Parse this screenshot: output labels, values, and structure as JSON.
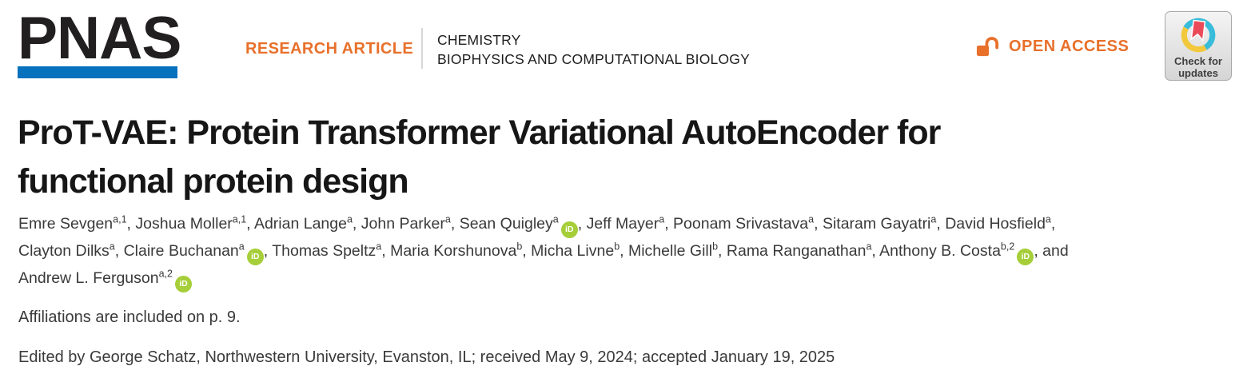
{
  "header": {
    "logo_text": "PNAS",
    "article_type": "RESEARCH ARTICLE",
    "categories": [
      "CHEMISTRY",
      "BIOPHYSICS AND COMPUTATIONAL BIOLOGY"
    ],
    "open_access_label": "OPEN ACCESS",
    "check_updates": {
      "line1": "Check for",
      "line2": "updates"
    }
  },
  "article": {
    "title_line1": "ProT-VAE: Protein Transformer Variational AutoEncoder for",
    "title_line2": "functional protein design",
    "affiliations_note": "Affiliations are included on p. 9.",
    "edited_by": "Edited by George Schatz, Northwestern University, Evanston, IL; received May 9, 2024; accepted January 19, 2025"
  },
  "authors": [
    {
      "name": "Emre Sevgen",
      "sup": "a,1",
      "orcid": false,
      "sep": ", "
    },
    {
      "name": "Joshua Moller",
      "sup": "a,1",
      "orcid": false,
      "sep": ", "
    },
    {
      "name": "Adrian Lange",
      "sup": "a",
      "orcid": false,
      "sep": ", "
    },
    {
      "name": "John Parker",
      "sup": "a",
      "orcid": false,
      "sep": ", "
    },
    {
      "name": "Sean Quigley",
      "sup": "a",
      "orcid": true,
      "sep": ", "
    },
    {
      "name": "Jeff Mayer",
      "sup": "a",
      "orcid": false,
      "sep": ", "
    },
    {
      "name": "Poonam Srivastava",
      "sup": "a",
      "orcid": false,
      "sep": ", "
    },
    {
      "name": "Sitaram Gayatri",
      "sup": "a",
      "orcid": false,
      "sep": ", "
    },
    {
      "name": "David Hosfield",
      "sup": "a",
      "orcid": false,
      "sep": ",",
      "break_after": true
    },
    {
      "name": "Clayton Dilks",
      "sup": "a",
      "orcid": false,
      "sep": ", "
    },
    {
      "name": "Claire Buchanan",
      "sup": "a",
      "orcid": true,
      "sep": ", "
    },
    {
      "name": "Thomas Speltz",
      "sup": "a",
      "orcid": false,
      "sep": ", "
    },
    {
      "name": "Maria Korshunova",
      "sup": "b",
      "orcid": false,
      "sep": ", "
    },
    {
      "name": "Micha Livne",
      "sup": "b",
      "orcid": false,
      "sep": ", "
    },
    {
      "name": "Michelle Gill",
      "sup": "b",
      "orcid": false,
      "sep": ", "
    },
    {
      "name": "Rama Ranganathan",
      "sup": "a",
      "orcid": false,
      "sep": ", "
    },
    {
      "name": "Anthony B. Costa",
      "sup": "b,2",
      "orcid": true,
      "sep": ", and",
      "break_after": true
    },
    {
      "name": "Andrew L. Ferguson",
      "sup": "a,2",
      "orcid": true,
      "sep": ""
    }
  ],
  "colors": {
    "accent_orange": "#e8702b",
    "pnas_blue": "#0671bc",
    "orcid_green": "#a6ce39",
    "crossmark_teal": "#38bcd9",
    "crossmark_yellow": "#f2c83d",
    "crossmark_red": "#eb4b59",
    "title_text": "#161616",
    "body_text": "#3a3a3a"
  }
}
